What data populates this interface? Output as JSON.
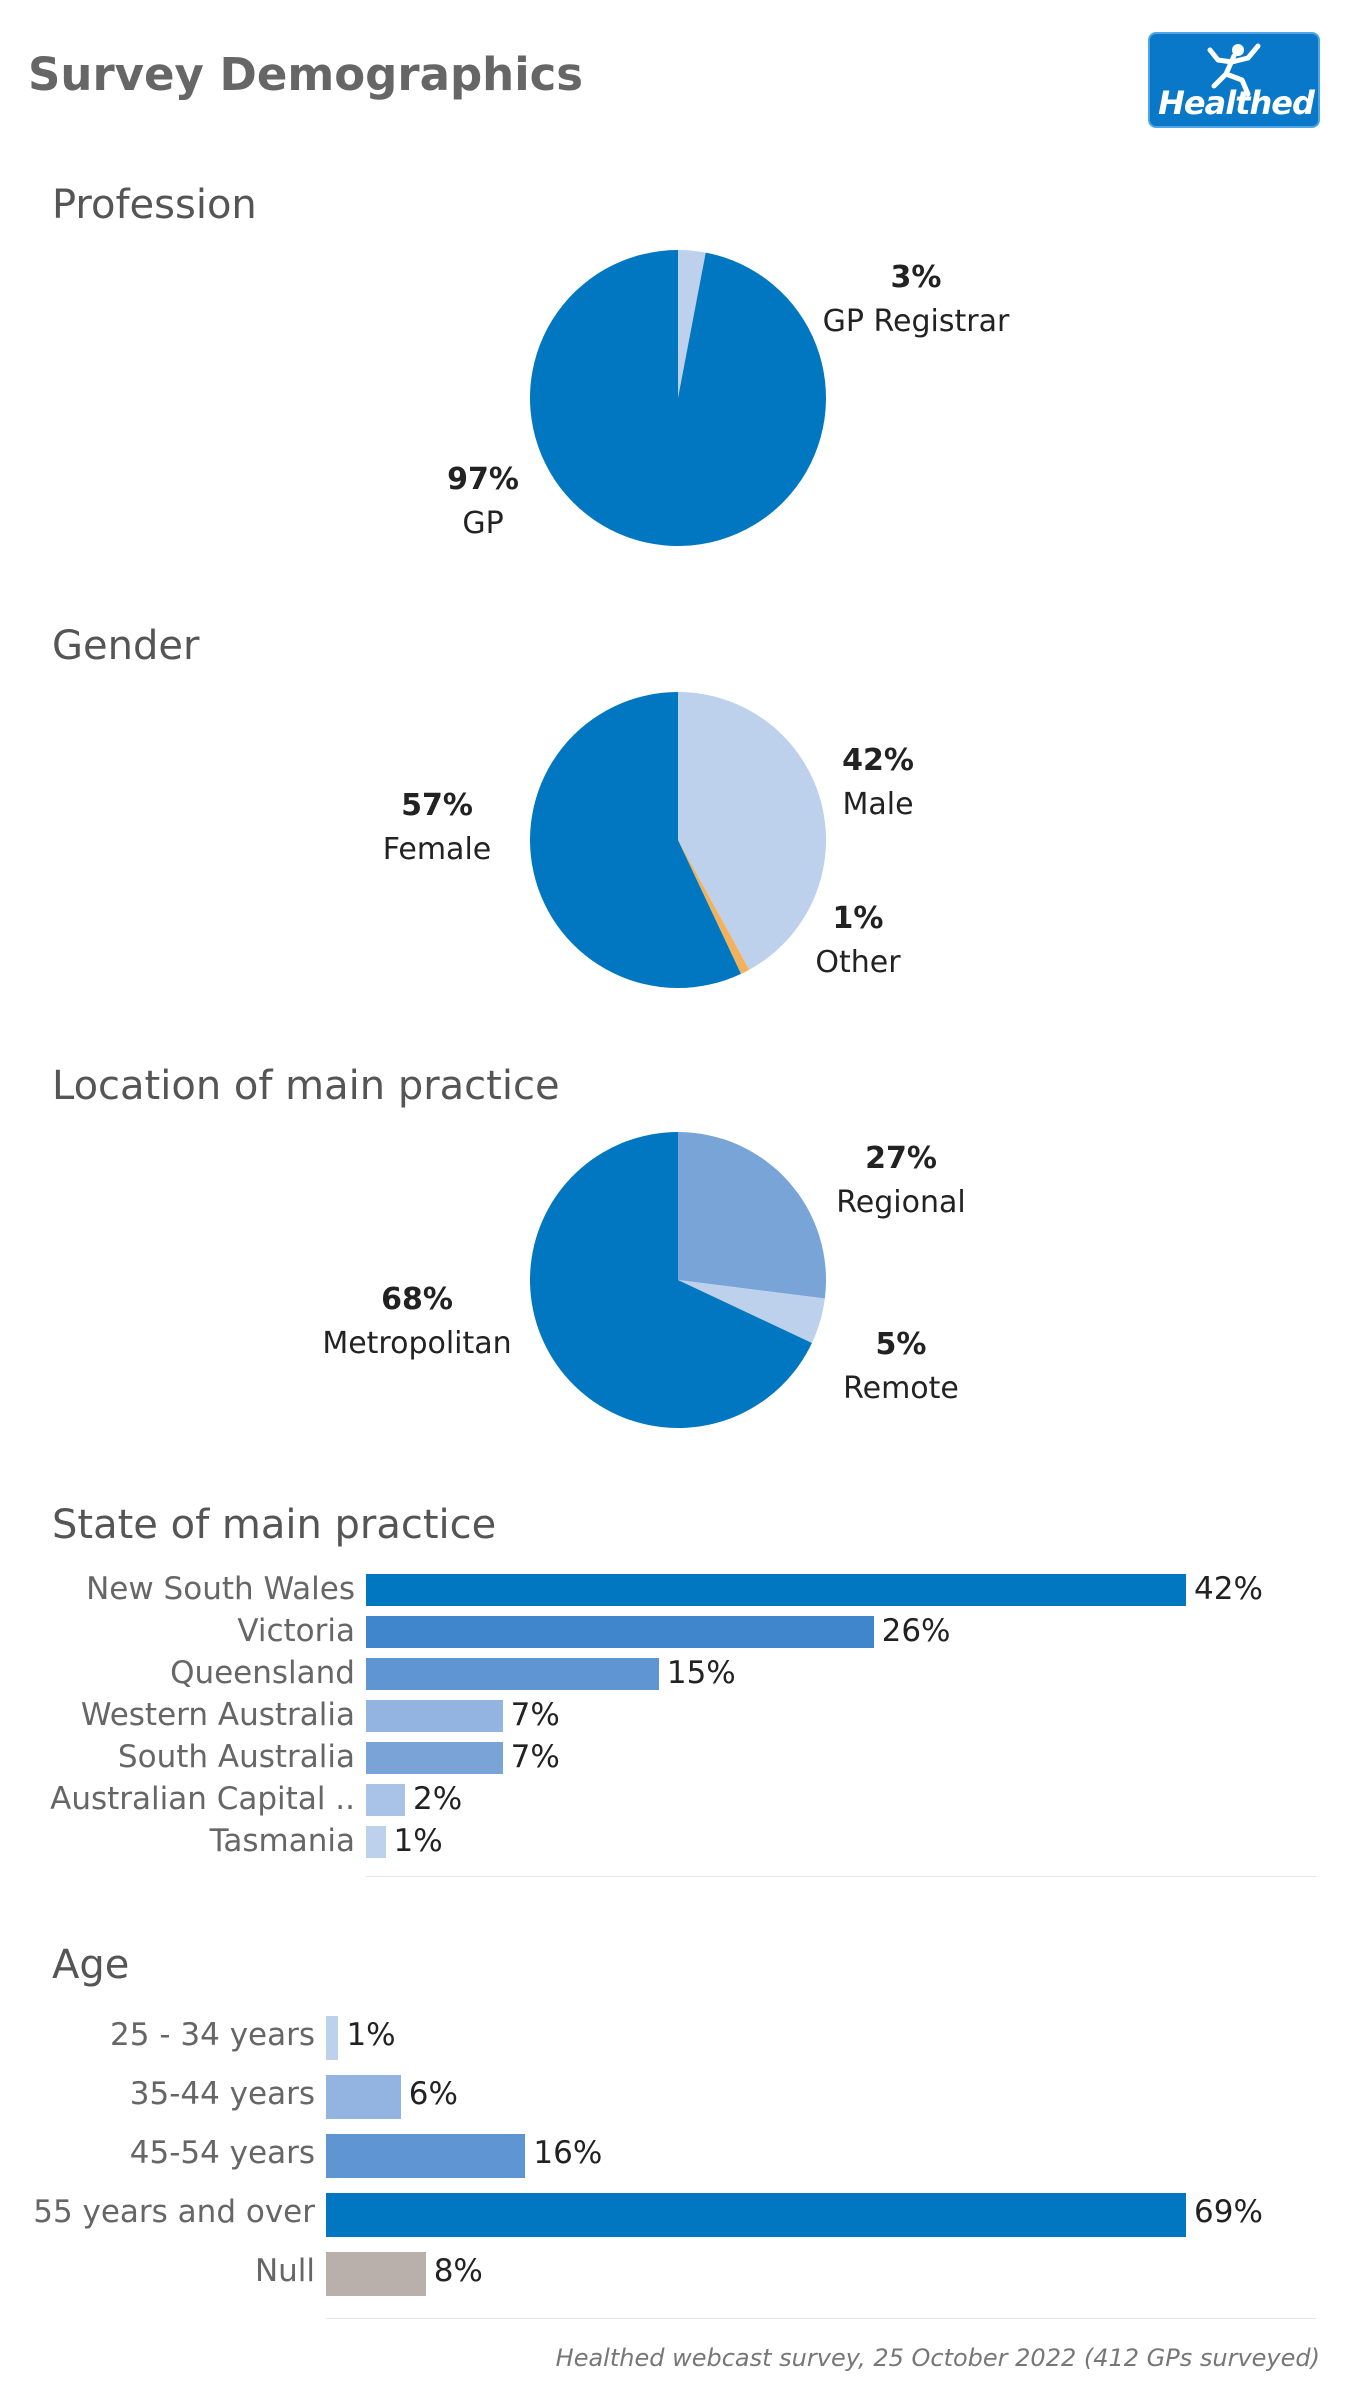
{
  "page": {
    "title": "Survey Demographics",
    "logo_text": "Healthed",
    "footnote": "Healthed webcast survey, 25 October 2022 (412 GPs surveyed)"
  },
  "colors": {
    "dark_blue": "#0077c0",
    "mid_blue": "#78a4d8",
    "light_blue": "#bdd0ec",
    "other_orange": "#f2b25c",
    "null_grey": "#b9afab",
    "title_grey": "#666666"
  },
  "chart_data": [
    {
      "type": "pie",
      "title": "Profession",
      "slices": [
        {
          "name": "GP Registrar",
          "value": 3,
          "label": "3%",
          "color": "#bdd0ec"
        },
        {
          "name": "GP",
          "value": 97,
          "label": "97%",
          "color": "#0077c0"
        }
      ]
    },
    {
      "type": "pie",
      "title": "Gender",
      "slices": [
        {
          "name": "Male",
          "value": 42,
          "label": "42%",
          "color": "#bdd0ec"
        },
        {
          "name": "Other",
          "value": 1,
          "label": "1%",
          "color": "#f2b25c"
        },
        {
          "name": "Female",
          "value": 57,
          "label": "57%",
          "color": "#0077c0"
        }
      ]
    },
    {
      "type": "pie",
      "title": "Location of main practice",
      "slices": [
        {
          "name": "Regional",
          "value": 27,
          "label": "27%",
          "color": "#78a4d8"
        },
        {
          "name": "Remote",
          "value": 5,
          "label": "5%",
          "color": "#bdd0ec"
        },
        {
          "name": "Metropolitan",
          "value": 68,
          "label": "68%",
          "color": "#0077c0"
        }
      ]
    },
    {
      "type": "bar",
      "title": "State of main practice",
      "orientation": "horizontal",
      "categories": [
        "New South Wales",
        "Victoria",
        "Queensland",
        "Western Australia",
        "South Australia",
        "Australian Capital ..",
        "Tasmania"
      ],
      "values": [
        42,
        26,
        15,
        7,
        7,
        2,
        1
      ],
      "labels": [
        "42%",
        "26%",
        "15%",
        "7%",
        "7%",
        "2%",
        "1%"
      ],
      "colors": [
        "#0077c0",
        "#3f86cc",
        "#5f95d2",
        "#93b3e0",
        "#7aa3d8",
        "#a9c2e8",
        "#bdd0ec"
      ]
    },
    {
      "type": "bar",
      "title": "Age",
      "orientation": "horizontal",
      "categories": [
        "25 - 34 years",
        "35-44 years",
        "45-54 years",
        "55 years and over",
        "Null"
      ],
      "values": [
        1,
        6,
        16,
        69,
        8
      ],
      "labels": [
        "1%",
        "6%",
        "16%",
        "69%",
        "8%"
      ],
      "colors": [
        "#bdd0ec",
        "#93b3e0",
        "#5f95d2",
        "#0077c0",
        "#b9afab"
      ]
    }
  ]
}
